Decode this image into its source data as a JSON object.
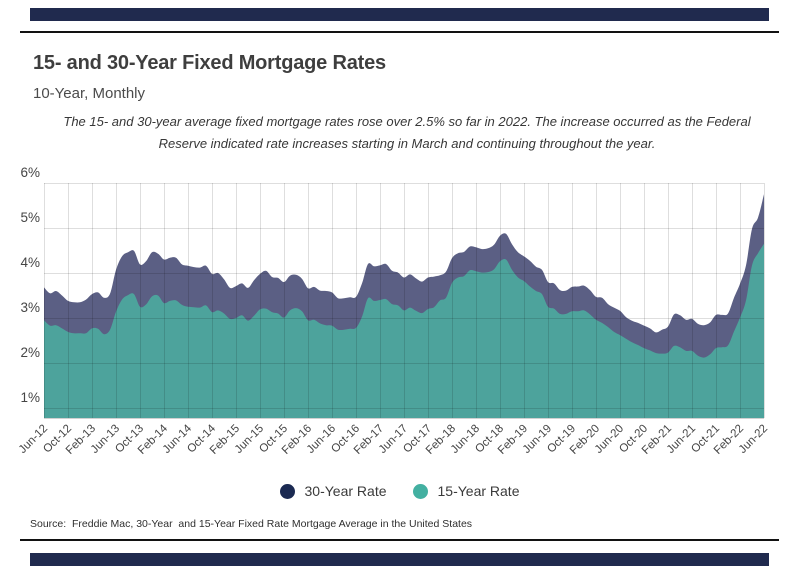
{
  "header": {
    "title": "15- and 30-Year Fixed Mortgage Rates",
    "subtitle": "10-Year, Monthly",
    "annotation": [
      "The 15- and 30-year average fixed mortgage rates rose over 2.5% so far in 2022. The increase occurred as the Federal",
      "Reserve indicated rate increases starting in March and continuing throughout the year."
    ]
  },
  "legend": {
    "items": [
      {
        "label": "30-Year Rate",
        "color": "#1b2a52"
      },
      {
        "label": "15-Year Rate",
        "color": "#43b0a1"
      }
    ]
  },
  "source": "Source:  Freddie Mac, 30-Year  and 15-Year Fixed Rate Mortgage Average in the United States",
  "colors": {
    "accent_bar": "#202a4e",
    "rule": "#121212",
    "grid": "rgba(0,0,0,0.13)",
    "axis_text": "#454545",
    "series_30_fill": "#5b5f84",
    "series_15_fill": "#4da39c"
  },
  "chart_data": {
    "type": "area",
    "title": "15- and 30-Year Fixed Mortgage Rates",
    "subtitle": "10-Year, Monthly",
    "x_unit": "month",
    "x_range": "Jun-2012 to Jun-2022 (monthly, 121 points)",
    "x_tick_every_months": 4,
    "x_tick_labels": [
      "Jun-12",
      "Oct-12",
      "Feb-13",
      "Jun-13",
      "Oct-13",
      "Feb-14",
      "Jun-14",
      "Oct-14",
      "Feb-15",
      "Jun-15",
      "Oct-15",
      "Feb-16",
      "Jun-16",
      "Oct-16",
      "Feb-17",
      "Jun-17",
      "Oct-17",
      "Feb-18",
      "Jun-18",
      "Oct-18",
      "Feb-19",
      "Jun-19",
      "Oct-19",
      "Feb-20",
      "Jun-20",
      "Oct-20",
      "Feb-21",
      "Jun-21",
      "Oct-21",
      "Feb-22",
      "Jun-22"
    ],
    "y_tick_labels": [
      "1%",
      "2%",
      "3%",
      "4%",
      "5%",
      "6%"
    ],
    "ylim": [
      0.78,
      6.0
    ],
    "grid": true,
    "legend_position": "bottom",
    "series": [
      {
        "name": "30-Year Rate",
        "color": "#5b5f84",
        "legend_color": "#1b2a52",
        "values": [
          3.68,
          3.55,
          3.6,
          3.5,
          3.38,
          3.35,
          3.35,
          3.41,
          3.53,
          3.57,
          3.45,
          3.54,
          4.07,
          4.37,
          4.46,
          4.49,
          4.19,
          4.26,
          4.46,
          4.43,
          4.3,
          4.34,
          4.34,
          4.19,
          4.16,
          4.13,
          4.12,
          4.16,
          3.98,
          4.0,
          3.86,
          3.67,
          3.71,
          3.77,
          3.67,
          3.84,
          3.98,
          4.05,
          3.91,
          3.89,
          3.8,
          3.94,
          3.96,
          3.87,
          3.66,
          3.69,
          3.61,
          3.6,
          3.57,
          3.44,
          3.44,
          3.46,
          3.47,
          3.77,
          4.2,
          4.15,
          4.17,
          4.2,
          4.05,
          4.01,
          3.9,
          3.97,
          3.88,
          3.81,
          3.9,
          3.92,
          3.95,
          4.03,
          4.33,
          4.44,
          4.47,
          4.59,
          4.57,
          4.53,
          4.55,
          4.63,
          4.83,
          4.87,
          4.64,
          4.46,
          4.37,
          4.27,
          4.14,
          4.07,
          3.8,
          3.77,
          3.62,
          3.61,
          3.69,
          3.7,
          3.72,
          3.62,
          3.47,
          3.45,
          3.31,
          3.23,
          3.16,
          3.02,
          2.94,
          2.89,
          2.83,
          2.77,
          2.68,
          2.74,
          2.81,
          3.08,
          3.06,
          2.96,
          2.98,
          2.87,
          2.84,
          2.9,
          3.07,
          3.07,
          3.1,
          3.45,
          3.76,
          4.17,
          4.98,
          5.23,
          5.75
        ]
      },
      {
        "name": "15-Year Rate",
        "color": "#4da39c",
        "legend_color": "#43b0a1",
        "values": [
          2.95,
          2.83,
          2.84,
          2.77,
          2.69,
          2.66,
          2.66,
          2.66,
          2.77,
          2.76,
          2.64,
          2.74,
          3.14,
          3.41,
          3.51,
          3.53,
          3.25,
          3.3,
          3.48,
          3.5,
          3.33,
          3.38,
          3.39,
          3.29,
          3.25,
          3.24,
          3.23,
          3.28,
          3.13,
          3.17,
          3.1,
          2.98,
          3.0,
          3.06,
          2.94,
          3.05,
          3.19,
          3.21,
          3.13,
          3.1,
          3.01,
          3.17,
          3.22,
          3.15,
          2.95,
          2.96,
          2.88,
          2.84,
          2.83,
          2.74,
          2.74,
          2.76,
          2.78,
          3.03,
          3.44,
          3.38,
          3.4,
          3.42,
          3.31,
          3.28,
          3.17,
          3.23,
          3.16,
          3.11,
          3.2,
          3.24,
          3.39,
          3.45,
          3.78,
          3.9,
          3.93,
          4.06,
          4.04,
          4.01,
          4.02,
          4.08,
          4.26,
          4.3,
          4.07,
          3.9,
          3.82,
          3.7,
          3.6,
          3.53,
          3.25,
          3.21,
          3.09,
          3.09,
          3.15,
          3.15,
          3.17,
          3.08,
          2.96,
          2.89,
          2.8,
          2.69,
          2.62,
          2.54,
          2.46,
          2.4,
          2.33,
          2.28,
          2.22,
          2.21,
          2.23,
          2.38,
          2.35,
          2.27,
          2.27,
          2.16,
          2.12,
          2.19,
          2.33,
          2.35,
          2.39,
          2.7,
          3.01,
          3.39,
          4.17,
          4.44,
          4.65
        ]
      }
    ]
  }
}
